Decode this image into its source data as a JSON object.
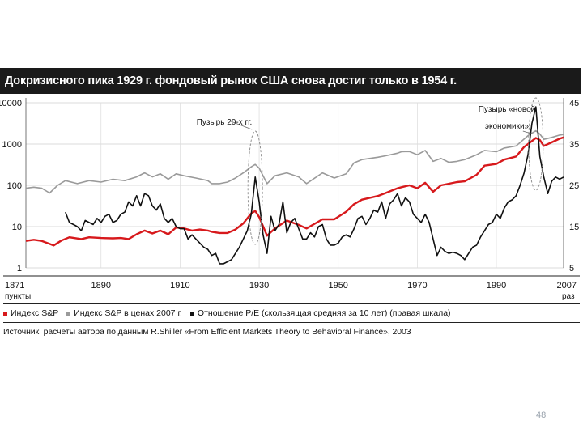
{
  "chart_data": {
    "type": "line",
    "title": "Докризисного пика 1929 г. фондовый рынок США снова достиг только в 1954 г.",
    "left_axis": {
      "label": "пункты",
      "scale": "log",
      "range": [
        1,
        10000
      ],
      "ticks": [
        "1",
        "10",
        "100",
        "1000",
        "10000"
      ]
    },
    "right_axis": {
      "label": "раз",
      "scale": "linear",
      "range": [
        5,
        45
      ],
      "ticks": [
        "5",
        "15",
        "25",
        "35",
        "45"
      ]
    },
    "x_axis": {
      "range": [
        1871,
        2007
      ],
      "ticks": [
        "1871",
        "1890",
        "1910",
        "1930",
        "1950",
        "1970",
        "1990",
        "2007"
      ]
    },
    "annotations": [
      {
        "text_lines": [
          "Пузырь 20-х гг."
        ],
        "year": 1929
      },
      {
        "text_lines": [
          "Пузырь «новой",
          "экономики»"
        ],
        "year": 2000
      }
    ],
    "legend": [
      {
        "label": "Индекс S&P",
        "color": "#d7191c"
      },
      {
        "label": "Индекс S&P в ценах 2007 г.",
        "color": "#9a9a9a"
      },
      {
        "label": "Отношение P/E (скользящая средняя за 10 лет) (правая шкала)",
        "color": "#111111"
      }
    ],
    "series": [
      {
        "name": "Индекс S&P",
        "axis": "left",
        "color": "#d7191c",
        "x": [
          1871,
          1873,
          1875,
          1877,
          1878,
          1880,
          1882,
          1885,
          1887,
          1890,
          1893,
          1895,
          1897,
          1899,
          1901,
          1903,
          1905,
          1907,
          1909,
          1911,
          1913,
          1915,
          1917,
          1918,
          1920,
          1922,
          1924,
          1926,
          1928,
          1929,
          1930,
          1932,
          1934,
          1937,
          1940,
          1942,
          1946,
          1949,
          1952,
          1954,
          1956,
          1960,
          1962,
          1965,
          1966,
          1968,
          1970,
          1972,
          1974,
          1976,
          1980,
          1982,
          1985,
          1987,
          1990,
          1992,
          1995,
          1997,
          1998,
          2000,
          2001,
          2002,
          2004,
          2006,
          2007
        ],
        "y": [
          4.5,
          4.8,
          4.5,
          3.8,
          3.5,
          4.6,
          5.5,
          5,
          5.5,
          5.3,
          5.2,
          5.3,
          5,
          6.5,
          8,
          6.8,
          8,
          6.5,
          9.5,
          9,
          8,
          8.5,
          8,
          7.5,
          7,
          7,
          8.5,
          12,
          21,
          24,
          17,
          6,
          9,
          14,
          11,
          9,
          15,
          15,
          23,
          35,
          45,
          55,
          65,
          85,
          90,
          100,
          85,
          115,
          70,
          100,
          120,
          125,
          180,
          300,
          330,
          420,
          500,
          850,
          1000,
          1400,
          1250,
          900,
          1100,
          1350,
          1450
        ]
      },
      {
        "name": "Индекс S&P в ценах 2007 г.",
        "axis": "left",
        "color": "#9a9a9a",
        "x": [
          1871,
          1873,
          1875,
          1877,
          1879,
          1881,
          1884,
          1887,
          1890,
          1893,
          1896,
          1899,
          1901,
          1903,
          1905,
          1907,
          1909,
          1911,
          1914,
          1917,
          1918,
          1920,
          1922,
          1924,
          1926,
          1928,
          1929,
          1930,
          1932,
          1934,
          1937,
          1940,
          1942,
          1946,
          1949,
          1952,
          1954,
          1956,
          1960,
          1962,
          1965,
          1966,
          1968,
          1970,
          1972,
          1974,
          1976,
          1978,
          1980,
          1982,
          1985,
          1987,
          1990,
          1992,
          1995,
          1998,
          2000,
          2001,
          2002,
          2004,
          2006,
          2007
        ],
        "y": [
          85,
          90,
          85,
          65,
          100,
          130,
          110,
          130,
          120,
          140,
          130,
          160,
          200,
          160,
          190,
          140,
          190,
          170,
          150,
          130,
          110,
          110,
          120,
          150,
          200,
          280,
          320,
          260,
          110,
          170,
          200,
          160,
          110,
          200,
          150,
          190,
          350,
          420,
          480,
          520,
          600,
          650,
          660,
          550,
          700,
          380,
          450,
          360,
          380,
          420,
          550,
          700,
          650,
          800,
          900,
          1600,
          2100,
          1750,
          1300,
          1450,
          1650,
          1700
        ]
      },
      {
        "name": "Отношение P/E (скользящая средняя за 10 лет) (правая шкала)",
        "axis": "right",
        "color": "#111111",
        "x": [
          1881,
          1882,
          1883,
          1884,
          1885,
          1886,
          1887,
          1888,
          1889,
          1890,
          1891,
          1892,
          1893,
          1894,
          1895,
          1896,
          1897,
          1898,
          1899,
          1900,
          1901,
          1902,
          1903,
          1904,
          1905,
          1906,
          1907,
          1908,
          1909,
          1910,
          1911,
          1912,
          1913,
          1914,
          1915,
          1916,
          1917,
          1918,
          1919,
          1920,
          1921,
          1922,
          1923,
          1924,
          1925,
          1926,
          1927,
          1928,
          1929,
          1930,
          1931,
          1932,
          1933,
          1934,
          1935,
          1936,
          1937,
          1938,
          1939,
          1940,
          1941,
          1942,
          1943,
          1944,
          1945,
          1946,
          1947,
          1948,
          1949,
          1950,
          1951,
          1952,
          1953,
          1954,
          1955,
          1956,
          1957,
          1958,
          1959,
          1960,
          1961,
          1962,
          1963,
          1964,
          1965,
          1966,
          1967,
          1968,
          1969,
          1970,
          1971,
          1972,
          1973,
          1974,
          1975,
          1976,
          1977,
          1978,
          1979,
          1980,
          1981,
          1982,
          1983,
          1984,
          1985,
          1986,
          1987,
          1988,
          1989,
          1990,
          1991,
          1992,
          1993,
          1994,
          1995,
          1996,
          1997,
          1998,
          1999,
          2000,
          2001,
          2002,
          2003,
          2004,
          2005,
          2006,
          2007
        ],
        "y": [
          18.5,
          16,
          15.5,
          15,
          14,
          16.5,
          16,
          15.5,
          17,
          16,
          17.5,
          18,
          16,
          16.5,
          18,
          18.5,
          21,
          20,
          22.5,
          20,
          23,
          22.5,
          20,
          19,
          20.5,
          17,
          16,
          17,
          15,
          14.5,
          14.5,
          12,
          13,
          12,
          11,
          10,
          9.5,
          8,
          8.5,
          6,
          6,
          6.5,
          7,
          8.5,
          10,
          12,
          14,
          18,
          27,
          21,
          13,
          8.5,
          17.5,
          14,
          15.5,
          21,
          13.5,
          16,
          17,
          14.5,
          12,
          12,
          13.5,
          12.5,
          15,
          15.5,
          12,
          10.5,
          10.5,
          11,
          12.5,
          13,
          12.5,
          14.5,
          17,
          17.5,
          15.5,
          17,
          19,
          18.5,
          21,
          17,
          20.5,
          21.5,
          23,
          20,
          22,
          21,
          18,
          17,
          16,
          18,
          16,
          12,
          8,
          10,
          9,
          8.5,
          8.8,
          8.5,
          8,
          7,
          8.5,
          10,
          10.5,
          12.5,
          14,
          15.5,
          16,
          18,
          17,
          19.5,
          21,
          21.5,
          22.5,
          25,
          28,
          32.5,
          40,
          44,
          32,
          27,
          23,
          26,
          27,
          26.5,
          27
        ]
      }
    ]
  },
  "legend_text": [
    "Индекс S&P",
    "Индекс S&P в ценах 2007 г.",
    "Отношение P/E (скользящая средняя за 10 лет) (правая шкала)"
  ],
  "source": "Источник: расчеты автора по данным R.Shiller «From Efficient Markets Theory to Behavioral Finance», 2003",
  "page_number": "48"
}
